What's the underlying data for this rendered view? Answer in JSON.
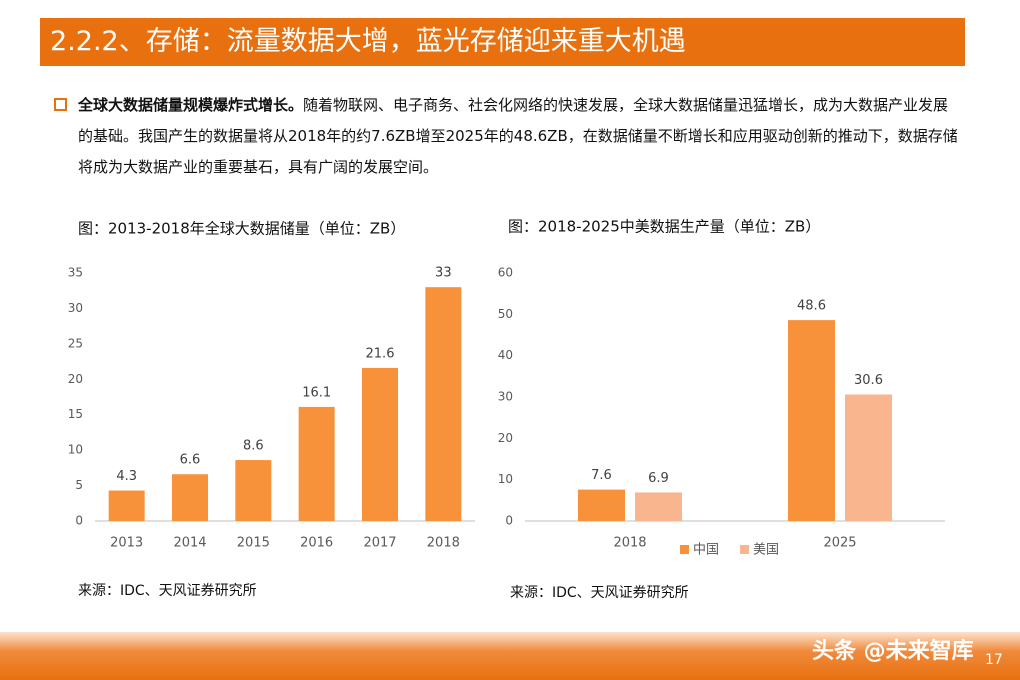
{
  "header": {
    "title": "2.2.2、存储：流量数据大增，蓝光存储迎来重大机遇"
  },
  "bullet": {
    "lead": "全球大数据储量规模爆炸式增长。",
    "text": "随着物联网、电子商务、社会化网络的快速发展，全球大数据储量迅猛增长，成为大数据产业发展的基础。我国产生的数据量将从2018年的约7.6ZB增至2025年的48.6ZB，在数据储量不断增长和应用驱动创新的推动下，数据存储将成为大数据产业的重要基石，具有广阔的发展空间。"
  },
  "chart_data": [
    {
      "type": "bar",
      "title": "图：2013-2018年全球大数据储量（单位：ZB）",
      "categories": [
        "2013",
        "2014",
        "2015",
        "2016",
        "2017",
        "2018"
      ],
      "series": [
        {
          "name": "全球大数据储量",
          "color": "#f7923a",
          "values": [
            4.3,
            6.6,
            8.6,
            16.1,
            21.6,
            33
          ]
        }
      ],
      "ylim": [
        0,
        35
      ],
      "yticks": [
        0,
        5,
        10,
        15,
        20,
        25,
        30,
        35
      ],
      "legend": false,
      "source": "来源：IDC、天风证券研究所"
    },
    {
      "type": "bar",
      "title": "图：2018-2025中美数据生产量（单位：ZB）",
      "categories": [
        "2018",
        "2025"
      ],
      "series": [
        {
          "name": "中国",
          "color": "#f7923a",
          "values": [
            7.6,
            48.6
          ]
        },
        {
          "name": "美国",
          "color": "#f9b58e",
          "values": [
            6.9,
            30.6
          ]
        }
      ],
      "ylim": [
        0,
        60
      ],
      "yticks": [
        0,
        10,
        20,
        30,
        40,
        50,
        60
      ],
      "legend": true,
      "source": "来源：IDC、天风证券研究所"
    }
  ],
  "footer": {
    "watermark": "头条 @未来智库",
    "page_number": "17"
  }
}
